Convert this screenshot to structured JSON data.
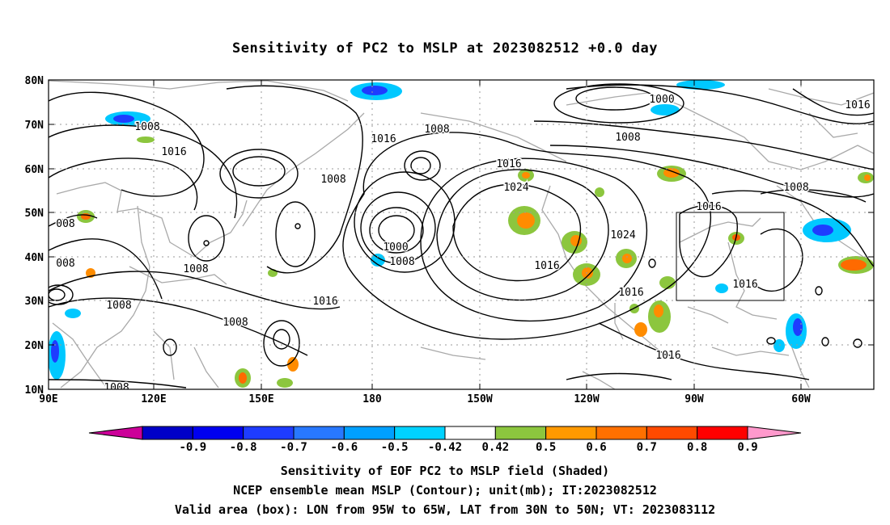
{
  "title": "Sensitivity of PC2 to MSLP at 2023082512 +0.0 day",
  "map": {
    "lat_ticks": [
      "80N",
      "70N",
      "60N",
      "50N",
      "40N",
      "30N",
      "20N",
      "10N"
    ],
    "lon_ticks": [
      "90E",
      "120E",
      "150E",
      "180",
      "150W",
      "120W",
      "90W",
      "60W"
    ],
    "valid_box": {
      "lon_from": "95W",
      "lon_to": "65W",
      "lat_from": "30N",
      "lat_to": "50N"
    },
    "contour_labels": [
      "1008",
      "1016",
      "1008",
      "1016",
      "1016",
      "1008",
      "1000",
      "1016",
      "1016",
      "1008",
      "008",
      "1016",
      "1024",
      "1008",
      "008",
      "1008",
      "1000",
      "1008",
      "1016",
      "1024",
      "1016",
      "1008",
      "1016",
      "1008",
      "1016",
      "1016",
      "1008"
    ],
    "colors": {
      "coast": "#a9a9a9",
      "contour": "#000000",
      "grid": "#9a9a9a",
      "neg_strong": "#1e3cff",
      "neg_light": "#00c8ff",
      "pos_green": "#8cc63e",
      "pos_orange": "#ff8c00",
      "pos_red": "#ff2a00"
    }
  },
  "colorbar": {
    "levels": [
      "-0.9",
      "-0.8",
      "-0.7",
      "-0.6",
      "-0.5",
      "-0.42",
      "0.42",
      "0.5",
      "0.6",
      "0.7",
      "0.8",
      "0.9"
    ],
    "colors": [
      "#cc0099",
      "#0000c8",
      "#0000f0",
      "#1e3cff",
      "#2878ff",
      "#00a0ff",
      "#00d2ff",
      "#ffffff",
      "#8cc63e",
      "#ff9900",
      "#ff7000",
      "#ff4a00",
      "#ff0000",
      "#ff99cc"
    ]
  },
  "captions": [
    "Sensitivity of EOF PC2 to MSLP field (Shaded)",
    "NCEP ensemble mean MSLP (Contour); unit(mb); IT:2023082512",
    "Valid area (box): LON from 95W to 65W, LAT from 30N to 50N; VT: 2023083112"
  ]
}
